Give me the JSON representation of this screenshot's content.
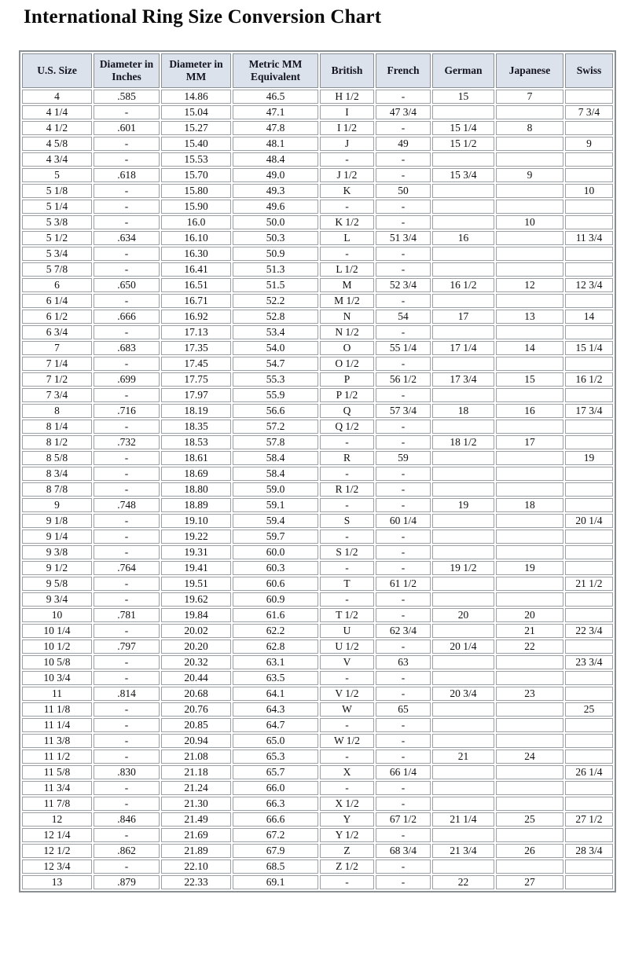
{
  "title": "International Ring Size Conversion Chart",
  "colors": {
    "header_bg": "#dbe2eb",
    "header_text": "#14141e",
    "cell_border": "#9aa0a6",
    "outer_border": "#8a8f94",
    "cell_text": "#101010"
  },
  "chart_data": {
    "type": "table",
    "title": "International Ring Size Conversion Chart",
    "columns": [
      "U.S. Size",
      "Diameter in Inches",
      "Diameter in MM",
      "Metric MM Equivalent",
      "British",
      "French",
      "German",
      "Japanese",
      "Swiss"
    ],
    "rows": [
      [
        "4",
        ".585",
        "14.86",
        "46.5",
        "H 1/2",
        "-",
        "15",
        "7",
        ""
      ],
      [
        "4 1/4",
        "-",
        "15.04",
        "47.1",
        "I",
        "47 3/4",
        "",
        "",
        "7 3/4"
      ],
      [
        "4 1/2",
        ".601",
        "15.27",
        "47.8",
        "I 1/2",
        "-",
        "15 1/4",
        "8",
        ""
      ],
      [
        "4 5/8",
        "-",
        "15.40",
        "48.1",
        "J",
        "49",
        "15 1/2",
        "",
        "9"
      ],
      [
        "4 3/4",
        "-",
        "15.53",
        "48.4",
        "-",
        "-",
        "",
        "",
        ""
      ],
      [
        "5",
        ".618",
        "15.70",
        "49.0",
        "J 1/2",
        "-",
        "15 3/4",
        "9",
        ""
      ],
      [
        "5 1/8",
        "-",
        "15.80",
        "49.3",
        "K",
        "50",
        "",
        "",
        "10"
      ],
      [
        "5 1/4",
        "-",
        "15.90",
        "49.6",
        "-",
        "-",
        "",
        "",
        ""
      ],
      [
        "5 3/8",
        "-",
        "16.0",
        "50.0",
        "K 1/2",
        "-",
        "",
        "10",
        ""
      ],
      [
        "5 1/2",
        ".634",
        "16.10",
        "50.3",
        "L",
        "51 3/4",
        "16",
        "",
        "11 3/4"
      ],
      [
        "5 3/4",
        "-",
        "16.30",
        "50.9",
        "-",
        "-",
        "",
        "",
        ""
      ],
      [
        "5 7/8",
        "-",
        "16.41",
        "51.3",
        "L 1/2",
        "-",
        "",
        "",
        ""
      ],
      [
        "6",
        ".650",
        "16.51",
        "51.5",
        "M",
        "52 3/4",
        "16 1/2",
        "12",
        "12 3/4"
      ],
      [
        "6 1/4",
        "-",
        "16.71",
        "52.2",
        "M 1/2",
        "-",
        "",
        "",
        ""
      ],
      [
        "6 1/2",
        ".666",
        "16.92",
        "52.8",
        "N",
        "54",
        "17",
        "13",
        "14"
      ],
      [
        "6 3/4",
        "-",
        "17.13",
        "53.4",
        "N 1/2",
        "-",
        "",
        "",
        ""
      ],
      [
        "7",
        ".683",
        "17.35",
        "54.0",
        "O",
        "55 1/4",
        "17 1/4",
        "14",
        "15 1/4"
      ],
      [
        "7 1/4",
        "-",
        "17.45",
        "54.7",
        "O 1/2",
        "-",
        "",
        "",
        ""
      ],
      [
        "7 1/2",
        ".699",
        "17.75",
        "55.3",
        "P",
        "56 1/2",
        "17 3/4",
        "15",
        "16 1/2"
      ],
      [
        "7 3/4",
        "-",
        "17.97",
        "55.9",
        "P 1/2",
        "-",
        "",
        "",
        ""
      ],
      [
        "8",
        ".716",
        "18.19",
        "56.6",
        "Q",
        "57 3/4",
        "18",
        "16",
        "17 3/4"
      ],
      [
        "8 1/4",
        "-",
        "18.35",
        "57.2",
        "Q 1/2",
        "-",
        "",
        "",
        ""
      ],
      [
        "8 1/2",
        ".732",
        "18.53",
        "57.8",
        "-",
        "-",
        "18 1/2",
        "17",
        ""
      ],
      [
        "8 5/8",
        "-",
        "18.61",
        "58.4",
        "R",
        "59",
        "",
        "",
        "19"
      ],
      [
        "8 3/4",
        "-",
        "18.69",
        "58.4",
        "-",
        "-",
        "",
        "",
        ""
      ],
      [
        "8 7/8",
        "-",
        "18.80",
        "59.0",
        "R 1/2",
        "-",
        "",
        "",
        ""
      ],
      [
        "9",
        ".748",
        "18.89",
        "59.1",
        "-",
        "-",
        "19",
        "18",
        ""
      ],
      [
        "9 1/8",
        "-",
        "19.10",
        "59.4",
        "S",
        "60 1/4",
        "",
        "",
        "20 1/4"
      ],
      [
        "9 1/4",
        "-",
        "19.22",
        "59.7",
        "-",
        "-",
        "",
        "",
        ""
      ],
      [
        "9 3/8",
        "-",
        "19.31",
        "60.0",
        "S 1/2",
        "-",
        "",
        "",
        ""
      ],
      [
        "9 1/2",
        ".764",
        "19.41",
        "60.3",
        "-",
        "-",
        "19 1/2",
        "19",
        ""
      ],
      [
        "9 5/8",
        "-",
        "19.51",
        "60.6",
        "T",
        "61 1/2",
        "",
        "",
        "21 1/2"
      ],
      [
        "9 3/4",
        "-",
        "19.62",
        "60.9",
        "-",
        "-",
        "",
        "",
        ""
      ],
      [
        "10",
        ".781",
        "19.84",
        "61.6",
        "T 1/2",
        "-",
        "20",
        "20",
        ""
      ],
      [
        "10 1/4",
        "-",
        "20.02",
        "62.2",
        "U",
        "62 3/4",
        "",
        "21",
        "22 3/4"
      ],
      [
        "10 1/2",
        ".797",
        "20.20",
        "62.8",
        "U 1/2",
        "-",
        "20 1/4",
        "22",
        ""
      ],
      [
        "10 5/8",
        "-",
        "20.32",
        "63.1",
        "V",
        "63",
        "",
        "",
        "23 3/4"
      ],
      [
        "10 3/4",
        "-",
        "20.44",
        "63.5",
        "-",
        "-",
        "",
        "",
        ""
      ],
      [
        "11",
        ".814",
        "20.68",
        "64.1",
        "V 1/2",
        "-",
        "20 3/4",
        "23",
        ""
      ],
      [
        "11 1/8",
        "-",
        "20.76",
        "64.3",
        "W",
        "65",
        "",
        "",
        "25"
      ],
      [
        "11 1/4",
        "-",
        "20.85",
        "64.7",
        "-",
        "-",
        "",
        "",
        ""
      ],
      [
        "11 3/8",
        "-",
        "20.94",
        "65.0",
        "W 1/2",
        "-",
        "",
        "",
        ""
      ],
      [
        "11 1/2",
        "-",
        "21.08",
        "65.3",
        "-",
        "-",
        "21",
        "24",
        ""
      ],
      [
        "11 5/8",
        ".830",
        "21.18",
        "65.7",
        "X",
        "66 1/4",
        "",
        "",
        "26 1/4"
      ],
      [
        "11 3/4",
        "-",
        "21.24",
        "66.0",
        "-",
        "-",
        "",
        "",
        ""
      ],
      [
        "11 7/8",
        "-",
        "21.30",
        "66.3",
        "X 1/2",
        "-",
        "",
        "",
        ""
      ],
      [
        "12",
        ".846",
        "21.49",
        "66.6",
        "Y",
        "67 1/2",
        "21 1/4",
        "25",
        "27 1/2"
      ],
      [
        "12 1/4",
        "-",
        "21.69",
        "67.2",
        "Y 1/2",
        "-",
        "",
        "",
        ""
      ],
      [
        "12 1/2",
        ".862",
        "21.89",
        "67.9",
        "Z",
        "68 3/4",
        "21 3/4",
        "26",
        "28 3/4"
      ],
      [
        "12 3/4",
        "-",
        "22.10",
        "68.5",
        "Z 1/2",
        "-",
        "",
        "",
        ""
      ],
      [
        "13",
        ".879",
        "22.33",
        "69.1",
        "-",
        "-",
        "22",
        "27",
        ""
      ]
    ]
  }
}
